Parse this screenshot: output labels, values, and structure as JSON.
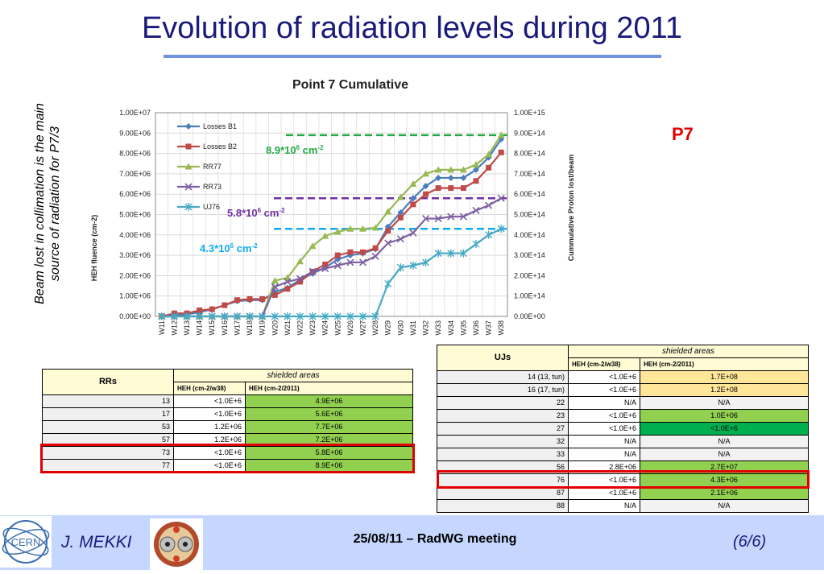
{
  "slide": {
    "title": "Evolution of radiation levels during 2011",
    "side_note": "Beam lost in collimation is the main source of radiation for P7/3",
    "p7_label": "P7"
  },
  "chart_data": {
    "type": "line",
    "title": "Point 7 Cumulative",
    "ylabel": "HEH fluence (cm-2)",
    "y2label": "Cummulative Proton lost/beam",
    "ylim": [
      0,
      10000000
    ],
    "y2lim": [
      0,
      1000000000000000.0
    ],
    "yticks": [
      "0.00E+00",
      "1.00E+06",
      "2.00E+06",
      "3.00E+06",
      "4.00E+06",
      "5.00E+06",
      "6.00E+06",
      "7.00E+06",
      "8.00E+06",
      "9.00E+06",
      "1.00E+07"
    ],
    "y2ticks": [
      "0.00E+00",
      "1.00E+14",
      "2.00E+14",
      "3.00E+14",
      "4.00E+14",
      "5.00E+14",
      "6.00E+14",
      "7.00E+14",
      "8.00E+14",
      "9.00E+14",
      "1.00E+15"
    ],
    "categories": [
      "W11",
      "W12",
      "W13",
      "W14",
      "W15",
      "W16",
      "W17",
      "W18",
      "W19",
      "W20",
      "W21",
      "W22",
      "W23",
      "W24",
      "W25",
      "W26",
      "W27",
      "W28",
      "W29",
      "W30",
      "W31",
      "W32",
      "W33",
      "W34",
      "W35",
      "W36",
      "W37",
      "W38"
    ],
    "grid": true,
    "legend": "top-left",
    "series": [
      {
        "name": "Losses B1",
        "color": "#4a7ebb",
        "marker": "diamond",
        "axis": "y2",
        "values": [
          0,
          0.05,
          0.1,
          0.2,
          0.35,
          0.55,
          0.75,
          0.8,
          0.8,
          1.2,
          1.4,
          1.8,
          2.1,
          2.4,
          2.8,
          3.0,
          3.1,
          3.3,
          4.4,
          5.1,
          5.8,
          6.4,
          6.8,
          6.8,
          6.8,
          7.2,
          7.8,
          8.7
        ]
      },
      {
        "name": "Losses B2",
        "color": "#be4b48",
        "marker": "square",
        "axis": "y2",
        "values": [
          0,
          0.15,
          0.15,
          0.3,
          0.35,
          0.55,
          0.8,
          0.85,
          0.85,
          1.05,
          1.35,
          1.7,
          2.2,
          2.55,
          3.0,
          3.15,
          3.15,
          3.35,
          4.2,
          4.85,
          5.5,
          6.0,
          6.3,
          6.3,
          6.3,
          6.65,
          7.3,
          8.05
        ]
      },
      {
        "name": "RR77",
        "color": "#98b954",
        "marker": "triangle",
        "axis": "y",
        "values": [
          0,
          0,
          0,
          0,
          0,
          0,
          0,
          0,
          0,
          1.75,
          1.9,
          2.7,
          3.45,
          3.95,
          4.15,
          4.3,
          4.3,
          4.35,
          5.15,
          5.85,
          6.5,
          7.0,
          7.2,
          7.2,
          7.2,
          7.45,
          7.95,
          8.9
        ]
      },
      {
        "name": "RR73",
        "color": "#7d60a0",
        "marker": "x",
        "axis": "y",
        "values": [
          0,
          0,
          0,
          0,
          0,
          0,
          0,
          0,
          0,
          1.45,
          1.7,
          1.85,
          2.2,
          2.35,
          2.5,
          2.65,
          2.65,
          2.95,
          3.6,
          3.8,
          4.1,
          4.8,
          4.8,
          4.9,
          4.9,
          5.2,
          5.45,
          5.8
        ]
      },
      {
        "name": "UJ76",
        "color": "#46aac5",
        "marker": "star",
        "axis": "y",
        "values": [
          0,
          0,
          0,
          0,
          0,
          0,
          0,
          0,
          0,
          0,
          0,
          0,
          0,
          0,
          0,
          0,
          0,
          0,
          1.6,
          2.4,
          2.5,
          2.65,
          3.1,
          3.1,
          3.1,
          3.55,
          4.0,
          4.3
        ]
      }
    ],
    "annotations": [
      {
        "text": "8.9*10",
        "sup": "6",
        "unit": " cm",
        "unit_sup": "-2",
        "value": 8.9,
        "color": "#22aa44"
      },
      {
        "text": "5.8*10",
        "sup": "6",
        "unit": " cm",
        "unit_sup": "-2",
        "value": 5.8,
        "color": "#7030a0"
      },
      {
        "text": "4.3*10",
        "sup": "6",
        "unit": " cm",
        "unit_sup": "-2",
        "value": 4.3,
        "color": "#11aaee"
      }
    ]
  },
  "rr_table": {
    "title": "RRs",
    "group": "shielded areas",
    "col1": "HEH (cm-2/w38)",
    "col2": "HEH (cm-2/2011)",
    "rows": [
      {
        "id": "13",
        "w38": "<1.0E+6",
        "y2011": "4.9E+06",
        "color": "#92d050"
      },
      {
        "id": "17",
        "w38": "<1.0E+6",
        "y2011": "5.6E+06",
        "color": "#92d050"
      },
      {
        "id": "53",
        "w38": "1.2E+06",
        "y2011": "7.7E+06",
        "color": "#92d050"
      },
      {
        "id": "57",
        "w38": "1.2E+06",
        "y2011": "7.2E+06",
        "color": "#92d050"
      },
      {
        "id": "73",
        "w38": "<1.0E+6",
        "y2011": "5.8E+06",
        "color": "#92d050"
      },
      {
        "id": "77",
        "w38": "<1.0E+6",
        "y2011": "8.9E+06",
        "color": "#92d050"
      }
    ]
  },
  "uj_table": {
    "title": "UJs",
    "group": "shielded areas",
    "col1": "HEH (cm-2/w38)",
    "col2": "HEH (cm-2/2011)",
    "rows": [
      {
        "id": "14 (13, tun)",
        "w38": "<1.0E+6",
        "y2011": "1.7E+08",
        "color": "#ffe699"
      },
      {
        "id": "16 (17, tun)",
        "w38": "<1.0E+6",
        "y2011": "1.2E+08",
        "color": "#ffe699"
      },
      {
        "id": "22",
        "w38": "N/A",
        "y2011": "N/A",
        "color": "#f2f2f2"
      },
      {
        "id": "23",
        "w38": "<1.0E+6",
        "y2011": "1.0E+06",
        "color": "#92d050"
      },
      {
        "id": "27",
        "w38": "<1.0E+6",
        "y2011": "<1.0E+6",
        "color": "#00b050"
      },
      {
        "id": "32",
        "w38": "N/A",
        "y2011": "N/A",
        "color": "#f2f2f2"
      },
      {
        "id": "33",
        "w38": "N/A",
        "y2011": "N/A",
        "color": "#f2f2f2"
      },
      {
        "id": "56",
        "w38": "2.8E+06",
        "y2011": "2.7E+07",
        "color": "#92d050"
      },
      {
        "id": "76",
        "w38": "<1.0E+6",
        "y2011": "4.3E+06",
        "color": "#92d050"
      },
      {
        "id": "87",
        "w38": "<1.0E+6",
        "y2011": "2.1E+06",
        "color": "#92d050"
      },
      {
        "id": "88",
        "w38": "N/A",
        "y2011": "N/A",
        "color": "#f2f2f2"
      }
    ]
  },
  "footer": {
    "cern_logo": "CERN",
    "author": "J. MEKKI",
    "meeting": "25/08/11 – RadWG meeting",
    "page": "(6/6)"
  }
}
